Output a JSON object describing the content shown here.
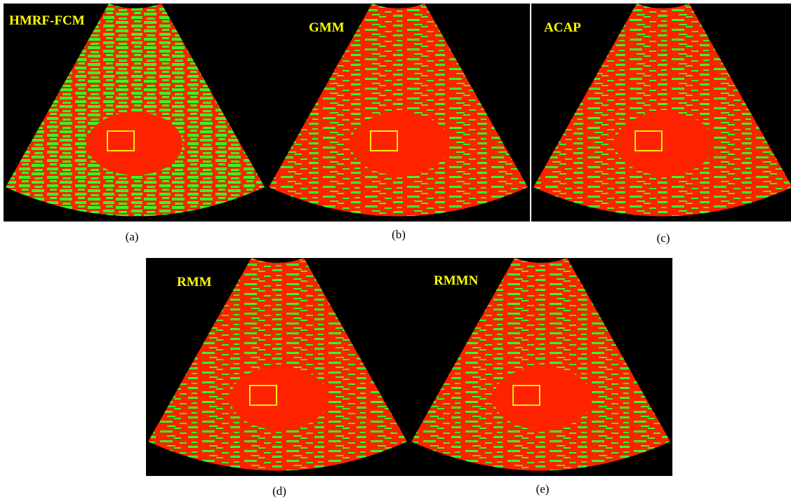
{
  "panels": [
    {
      "name": "HMRF-FCM",
      "caption": "(a)"
    },
    {
      "name": "GMM",
      "caption": "(b)"
    },
    {
      "name": "ACAP",
      "caption": "(c)"
    },
    {
      "name": "RMM",
      "caption": "(d)"
    },
    {
      "name": "RMMN",
      "caption": "(e)"
    }
  ]
}
